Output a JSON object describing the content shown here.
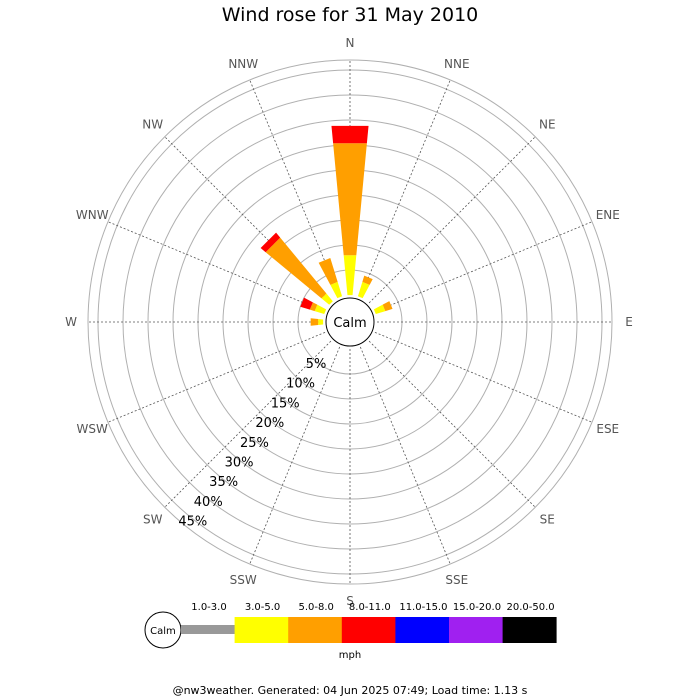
{
  "title": "Wind rose for 31 May 2010",
  "footer": "@nw3weather. Generated: 04 Jun 2025 07:49; Load time: 1.13 s",
  "chart_data": {
    "type": "wind-rose",
    "title": "Wind rose for 31 May 2010",
    "calm_label": "Calm",
    "unit": "mph",
    "directions": [
      "N",
      "NNE",
      "NE",
      "ENE",
      "E",
      "ESE",
      "SE",
      "SSE",
      "S",
      "SSW",
      "SW",
      "WSW",
      "W",
      "WNW",
      "NW",
      "NNW"
    ],
    "radial_ticks": [
      5,
      10,
      15,
      20,
      25,
      30,
      35,
      40,
      45
    ],
    "radial_tick_labels": [
      "5%",
      "10%",
      "15%",
      "20%",
      "25%",
      "30%",
      "35%",
      "40%",
      "45%"
    ],
    "radial_max": 47,
    "calm_percent": 3.5,
    "speed_bins": [
      {
        "label": "1.0-3.0",
        "color": "#999999"
      },
      {
        "label": "3.0-5.0",
        "color": "#ffff00"
      },
      {
        "label": "5.0-8.0",
        "color": "#ff9f00"
      },
      {
        "label": "8.0-11.0",
        "color": "#ff0000"
      },
      {
        "label": "11.0-15.0",
        "color": "#0000ff"
      },
      {
        "label": "15.0-20.0",
        "color": "#a020f0"
      },
      {
        "label": "20.0-50.0",
        "color": "#000000"
      }
    ],
    "frequencies": [
      [
        0,
        8.0,
        22.5,
        3.5,
        0,
        0,
        0
      ],
      [
        0,
        3.0,
        1.3,
        0,
        0,
        0,
        0
      ],
      [
        0,
        0,
        0,
        0,
        0,
        0,
        0
      ],
      [
        0,
        2.0,
        1.5,
        0,
        0,
        0,
        0
      ],
      [
        0,
        0,
        0,
        0,
        0,
        0,
        0
      ],
      [
        0,
        0,
        0,
        0,
        0,
        0,
        0
      ],
      [
        0,
        0,
        0,
        0,
        0,
        0,
        0
      ],
      [
        0,
        0,
        0,
        0,
        0,
        0,
        0
      ],
      [
        0,
        0,
        0,
        0,
        0,
        0,
        0
      ],
      [
        0,
        0,
        0,
        0,
        0,
        0,
        0
      ],
      [
        0,
        0,
        0,
        0,
        0,
        0,
        0
      ],
      [
        0,
        0,
        0,
        0,
        0,
        0,
        0
      ],
      [
        0,
        1.0,
        1.5,
        0,
        0,
        0,
        0
      ],
      [
        0,
        2.0,
        1.0,
        2.0,
        0,
        0,
        0
      ],
      [
        0,
        2.0,
        14.5,
        1.3,
        0,
        0,
        0
      ],
      [
        0,
        3.0,
        5.0,
        0,
        0,
        0,
        0
      ]
    ]
  }
}
